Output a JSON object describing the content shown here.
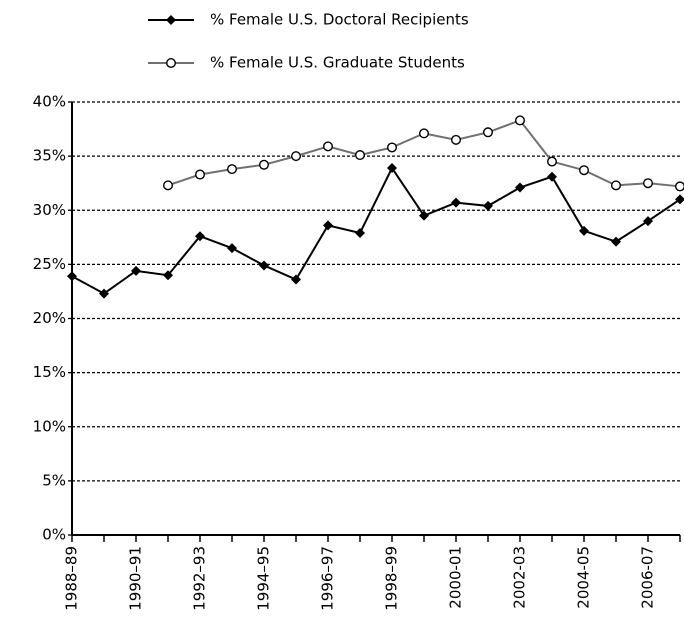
{
  "chart_data": {
    "type": "line",
    "categories": [
      "1988–89",
      null,
      "1990–91",
      null,
      "1992–93",
      null,
      "1994–95",
      null,
      "1996–97",
      null,
      "1998–99",
      null,
      "2000-01",
      null,
      "2002-03",
      null,
      "2004-05",
      null,
      "2006-07",
      null
    ],
    "series": [
      {
        "name": "% Female U.S. Doctoral Recipients",
        "color": "#000000",
        "marker": "diamond",
        "values": [
          23.9,
          22.3,
          24.4,
          24.0,
          27.6,
          26.5,
          24.9,
          23.6,
          28.6,
          27.9,
          33.9,
          29.5,
          30.7,
          30.4,
          32.1,
          33.1,
          28.1,
          27.1,
          29.0,
          31.0
        ]
      },
      {
        "name": "% Female U.S. Graduate Students",
        "color": "#707070",
        "marker": "open-circle",
        "values": [
          null,
          null,
          null,
          32.3,
          33.3,
          33.8,
          34.2,
          35.0,
          35.9,
          35.1,
          35.8,
          37.1,
          36.5,
          37.2,
          38.3,
          34.5,
          33.7,
          32.3,
          32.5,
          32.2
        ]
      }
    ],
    "ylim": [
      0,
      40
    ],
    "yticks": [
      {
        "value": 0,
        "label": "0%"
      },
      {
        "value": 5,
        "label": "5%"
      },
      {
        "value": 10,
        "label": "10%"
      },
      {
        "value": 15,
        "label": "15%"
      },
      {
        "value": 20,
        "label": "20%"
      },
      {
        "value": 25,
        "label": "25%"
      },
      {
        "value": 30,
        "label": "30%"
      },
      {
        "value": 35,
        "label": "35%"
      },
      {
        "value": 40,
        "label": "40%"
      }
    ],
    "grid": true,
    "legend": "top"
  }
}
